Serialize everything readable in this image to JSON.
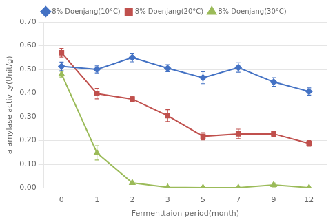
{
  "chart_data": {
    "type": "line",
    "categories": [
      "0",
      "1",
      "2",
      "3",
      "5",
      "7",
      "9",
      "12"
    ],
    "series": [
      {
        "name": "8% Doenjang(10°C)",
        "color": "#4472C4",
        "marker": "diamond",
        "values": [
          0.513,
          0.5,
          0.55,
          0.505,
          0.465,
          0.508,
          0.447,
          0.407
        ],
        "errors": [
          0.018,
          0.015,
          0.018,
          0.015,
          0.025,
          0.02,
          0.018,
          0.015
        ]
      },
      {
        "name": "8% Doenjang(20°C)",
        "color": "#C0504D",
        "marker": "square",
        "values": [
          0.57,
          0.398,
          0.375,
          0.305,
          0.218,
          0.228,
          0.228,
          0.188
        ],
        "errors": [
          0.018,
          0.022,
          0.012,
          0.025,
          0.015,
          0.02,
          0.01,
          0.012
        ]
      },
      {
        "name": "8% Doenjang(30°C)",
        "color": "#9BBB59",
        "marker": "triangle",
        "values": [
          0.48,
          0.148,
          0.022,
          0.003,
          0.002,
          0.002,
          0.013,
          0.002
        ],
        "errors": [
          0.012,
          0.03,
          0.005,
          0.002,
          0.001,
          0.001,
          0.008,
          0.001
        ]
      }
    ],
    "xlabel": "Fermenttaion period(month)",
    "ylabel": "a-amylase activity(Unit/g)",
    "ylim": [
      0.0,
      0.7
    ],
    "yticks": [
      {
        "value": 0.0,
        "label": "0.00"
      },
      {
        "value": 0.1,
        "label": "0.10"
      },
      {
        "value": 0.2,
        "label": "0.20"
      },
      {
        "value": 0.3,
        "label": "0.30"
      },
      {
        "value": 0.4,
        "label": "0.40"
      },
      {
        "value": 0.5,
        "label": "0.50"
      },
      {
        "value": 0.6,
        "label": "0.60"
      },
      {
        "value": 0.7,
        "label": "0.70"
      }
    ],
    "grid": true,
    "legend": "top"
  }
}
